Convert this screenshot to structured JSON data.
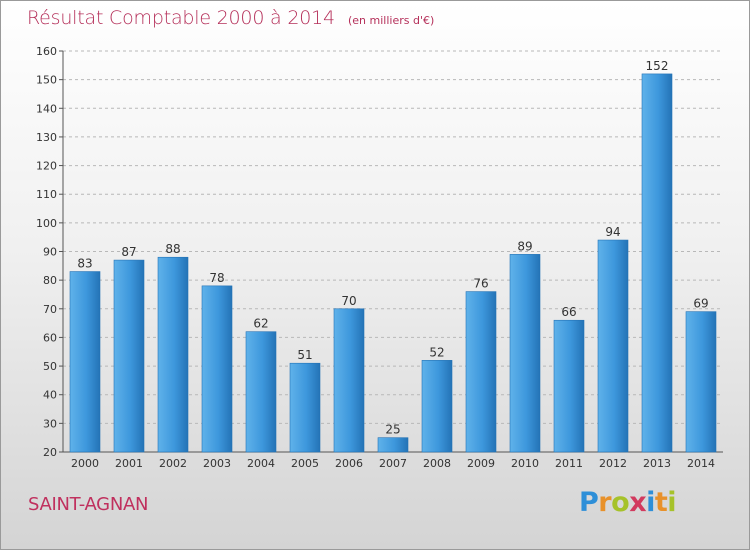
{
  "chart_data": {
    "type": "bar",
    "title": "Résultat Comptable 2000 à 2014",
    "subtitle": "(en milliers d'€)",
    "categories": [
      "2000",
      "2001",
      "2002",
      "2003",
      "2004",
      "2005",
      "2006",
      "2007",
      "2008",
      "2009",
      "2010",
      "2011",
      "2012",
      "2013",
      "2014"
    ],
    "values": [
      83,
      87,
      88,
      78,
      62,
      51,
      70,
      25,
      52,
      76,
      89,
      66,
      94,
      152,
      69
    ],
    "ylim": [
      20,
      160
    ],
    "yticks": [
      20,
      30,
      40,
      50,
      60,
      70,
      80,
      90,
      100,
      110,
      120,
      130,
      140,
      150,
      160
    ],
    "grid": "horizontal dashed",
    "xlabel": "",
    "ylabel": "",
    "bar_color": "#3d97dc",
    "bar_color_light": "#5fb2ea",
    "bar_color_dark": "#2473b6"
  },
  "footer": {
    "commune": "SAINT-AGNAN",
    "logo_letters": [
      {
        "ch": "P",
        "color": "#2e8fd8"
      },
      {
        "ch": "r",
        "color": "#e8912a"
      },
      {
        "ch": "o",
        "color": "#a6c22a"
      },
      {
        "ch": "x",
        "color": "#d23a5e"
      },
      {
        "ch": "i",
        "color": "#2e8fd8"
      },
      {
        "ch": "t",
        "color": "#e8912a"
      },
      {
        "ch": "i",
        "color": "#a6c22a"
      }
    ]
  },
  "colors": {
    "title": "#b5305a",
    "commune": "#c0305e",
    "text": "#333333"
  }
}
